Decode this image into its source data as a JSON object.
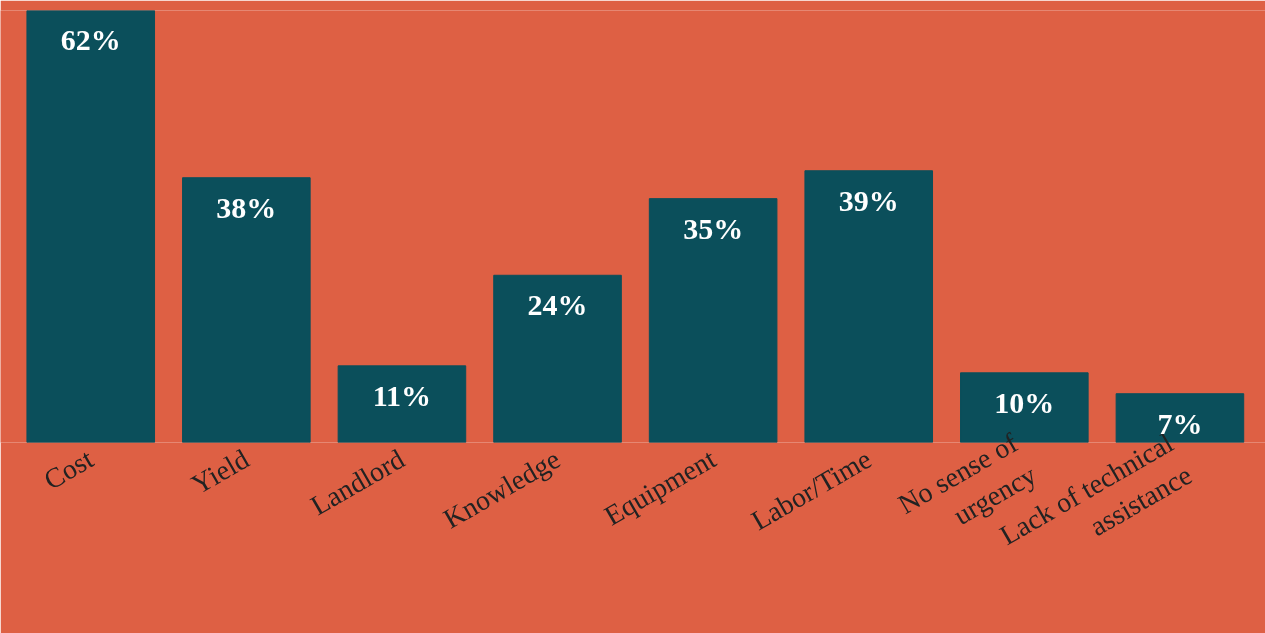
{
  "chart_data": {
    "type": "bar",
    "categories": [
      "Cost",
      "Yield",
      "Landlord",
      "Knowledge",
      "Equipment",
      "Labor/Time",
      "No sense of urgency",
      "Lack of technical assistance"
    ],
    "values": [
      62,
      38,
      11,
      24,
      35,
      39,
      10,
      7
    ],
    "value_labels": [
      "62%",
      "38%",
      "11%",
      "24%",
      "35%",
      "39%",
      "10%",
      "7%"
    ],
    "color": "#0b4f5b",
    "grid": false,
    "tick_labels": "x"
  }
}
